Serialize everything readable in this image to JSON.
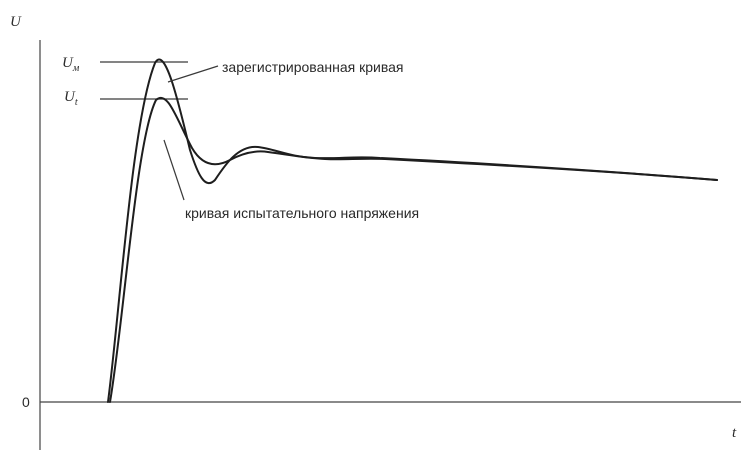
{
  "axes": {
    "y_label": "U",
    "x_label": "t",
    "origin_label": "0"
  },
  "levels": {
    "um": {
      "main": "U",
      "sub": "м"
    },
    "ut": {
      "main": "U",
      "sub": "t"
    }
  },
  "annotations": {
    "recorded_curve": "зарегистрированная кривая",
    "test_voltage_curve": "кривая испытательного напряжения"
  },
  "colors": {
    "curve": "#1e1e1e",
    "axis": "#444444"
  }
}
